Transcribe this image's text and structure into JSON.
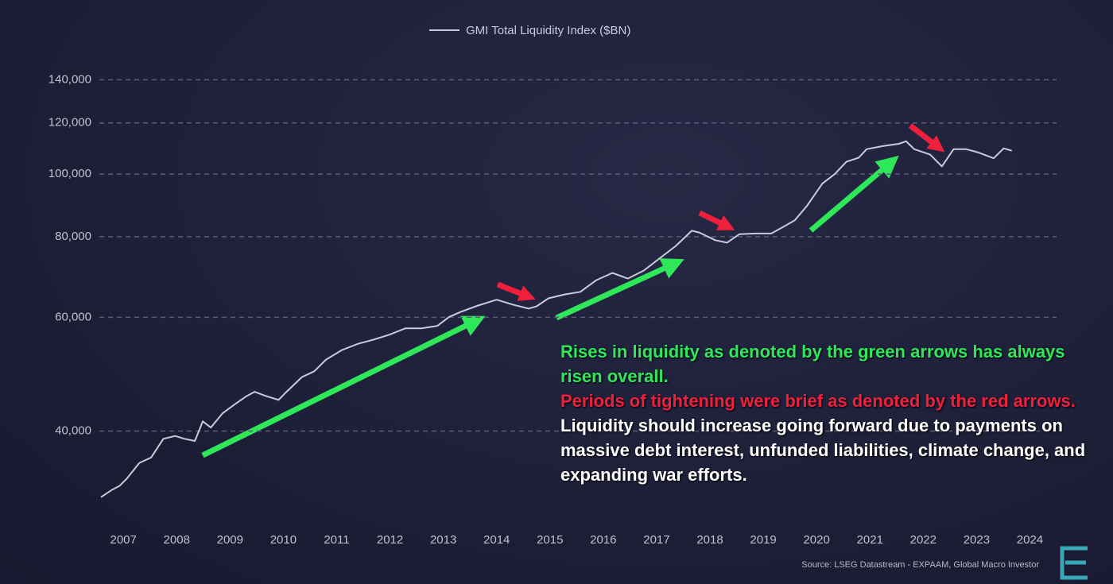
{
  "chart_data": {
    "type": "line",
    "x": [
      2006.58,
      2006.78,
      2006.93,
      2007.07,
      2007.3,
      2007.52,
      2007.75,
      2007.97,
      2008.15,
      2008.34,
      2008.49,
      2008.64,
      2008.86,
      2009.09,
      2009.31,
      2009.46,
      2009.68,
      2009.91,
      2010.06,
      2010.35,
      2010.58,
      2010.8,
      2011.1,
      2011.4,
      2011.69,
      2011.99,
      2012.29,
      2012.59,
      2012.89,
      2013.11,
      2013.33,
      2013.63,
      2014.0,
      2014.3,
      2014.6,
      2014.75,
      2014.97,
      2015.27,
      2015.57,
      2015.87,
      2016.17,
      2016.46,
      2016.76,
      2017.06,
      2017.36,
      2017.66,
      2017.8,
      2018.1,
      2018.32,
      2018.55,
      2018.85,
      2019.15,
      2019.37,
      2019.59,
      2019.82,
      2020.11,
      2020.34,
      2020.56,
      2020.79,
      2020.94,
      2021.24,
      2021.54,
      2021.68,
      2021.83,
      2022.13,
      2022.35,
      2022.57,
      2022.8,
      2023.02,
      2023.32,
      2023.51,
      2023.66
    ],
    "series": [
      {
        "name": "GMI Total Liquidity Index ($BN)",
        "color": "#c9cadb",
        "values": [
          31600,
          32400,
          32900,
          33800,
          35700,
          36400,
          38900,
          39300,
          38900,
          38600,
          41400,
          40500,
          42600,
          44000,
          45300,
          46000,
          45300,
          44700,
          46000,
          48500,
          49500,
          51600,
          53400,
          54600,
          55400,
          56400,
          57700,
          57700,
          58200,
          60100,
          61200,
          62500,
          63900,
          62800,
          61900,
          62400,
          64200,
          65100,
          65700,
          68500,
          70300,
          68900,
          70900,
          74100,
          77400,
          81700,
          81200,
          79000,
          78300,
          80700,
          80900,
          80900,
          82800,
          84800,
          89300,
          96700,
          100000,
          104500,
          106000,
          109300,
          110500,
          111400,
          112400,
          109300,
          107200,
          102800,
          109300,
          109300,
          108100,
          105800,
          109600,
          108700
        ]
      }
    ],
    "xlim": [
      2006.58,
      2024.5
    ],
    "xticks": [
      2007,
      2008,
      2009,
      2010,
      2011,
      2012,
      2013,
      2014,
      2015,
      2016,
      2017,
      2018,
      2019,
      2020,
      2021,
      2022,
      2023,
      2024
    ],
    "ylim": [
      30000,
      150000
    ],
    "yticks": [
      {
        "value": 40000,
        "label": "40,000"
      },
      {
        "value": 60000,
        "label": "60,000"
      },
      {
        "value": 80000,
        "label": "80,000"
      },
      {
        "value": 100000,
        "label": "100,000"
      },
      {
        "value": 120000,
        "label": "120,000"
      },
      {
        "value": 140000,
        "label": "140,000"
      }
    ],
    "ylog": true,
    "grid": true,
    "annotations": [
      {
        "text": "Rises in liquidity as denoted by the green arrows has always risen overall.",
        "color": "#2ee85a"
      },
      {
        "text": "Periods of tightening were brief as denoted by the red arrows.",
        "color": "#f0203c"
      },
      {
        "text": "Liquidity should increase going forward due to payments on massive debt interest, unfunded liabilities, climate change, and expanding war efforts.",
        "color": "#ffffff"
      }
    ],
    "source": "Source: LSEG Datastream - EXPAAM, Global Macro Investor"
  }
}
